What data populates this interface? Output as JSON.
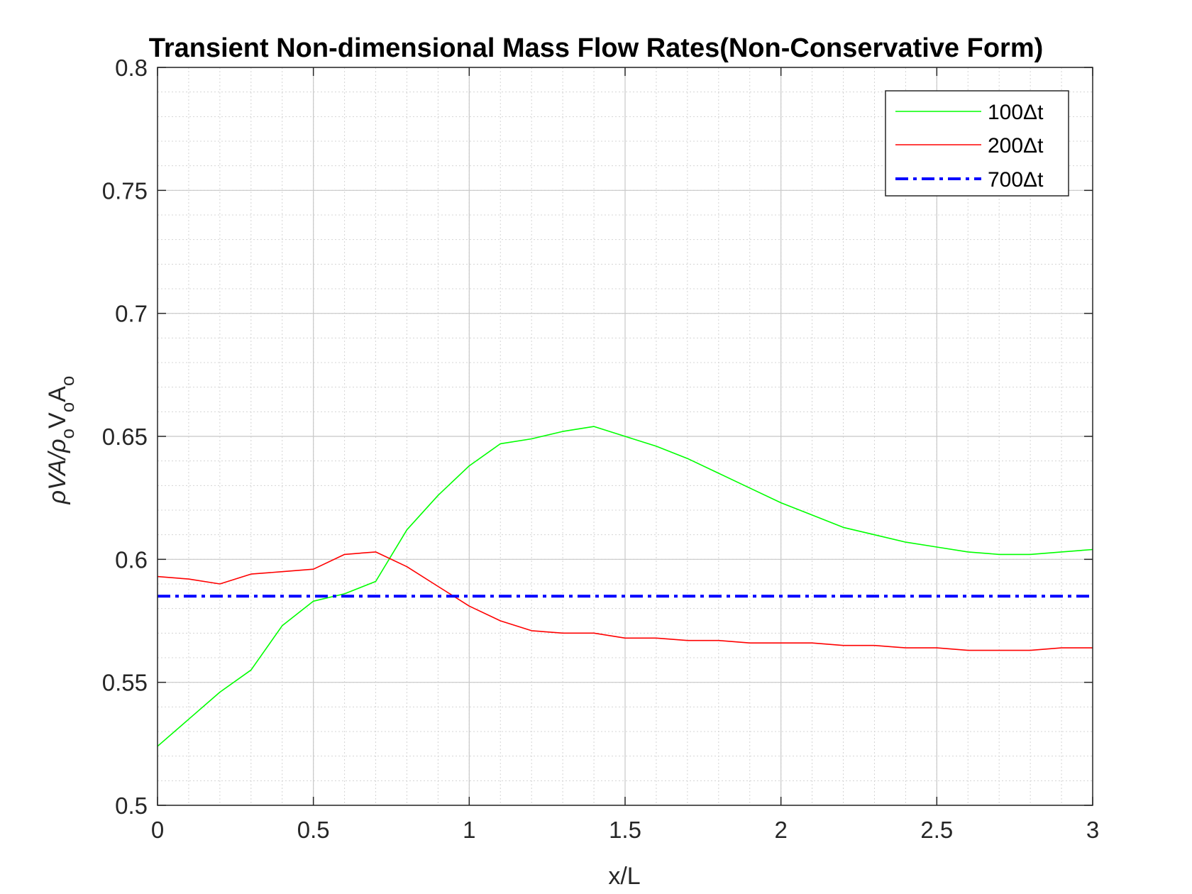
{
  "chart_data": {
    "type": "line",
    "title": "Transient Non-dimensional Mass Flow Rates(Non-Conservative Form)",
    "xlabel": "x/L",
    "ylabel": "ρVA/ρₒVₒAₒ",
    "ylabel_parts": {
      "main1": "ρVA/ρ",
      "sub1": "o",
      "main2": "V",
      "sub2": "o",
      "main3": "A",
      "sub3": "o"
    },
    "xlim": [
      0,
      3
    ],
    "ylim": [
      0.5,
      0.8
    ],
    "xticks": [
      0,
      0.5,
      1,
      1.5,
      2,
      2.5,
      3
    ],
    "xtick_labels": [
      "0",
      "0.5",
      "1",
      "1.5",
      "2",
      "2.5",
      "3"
    ],
    "yticks": [
      0.5,
      0.55,
      0.6,
      0.65,
      0.7,
      0.75,
      0.8
    ],
    "ytick_labels": [
      "0.5",
      "0.55",
      "0.6",
      "0.65",
      "0.7",
      "0.75",
      "0.8"
    ],
    "grid": true,
    "minor_grid": true,
    "legend_position": "top-right",
    "x": [
      0,
      0.1,
      0.2,
      0.3,
      0.4,
      0.5,
      0.6,
      0.7,
      0.8,
      0.9,
      1.0,
      1.1,
      1.2,
      1.3,
      1.4,
      1.5,
      1.6,
      1.7,
      1.8,
      1.9,
      2.0,
      2.1,
      2.2,
      2.3,
      2.4,
      2.5,
      2.6,
      2.7,
      2.8,
      2.9,
      3.0
    ],
    "series": [
      {
        "name": "100Δt",
        "color": "#00ff00",
        "style": "solid",
        "values": [
          0.524,
          0.535,
          0.546,
          0.555,
          0.573,
          0.583,
          0.586,
          0.591,
          0.612,
          0.626,
          0.638,
          0.647,
          0.649,
          0.652,
          0.654,
          0.65,
          0.646,
          0.641,
          0.635,
          0.629,
          0.623,
          0.618,
          0.613,
          0.61,
          0.607,
          0.605,
          0.603,
          0.602,
          0.602,
          0.603,
          0.604
        ]
      },
      {
        "name": "200Δt",
        "color": "#ff0000",
        "style": "solid",
        "values": [
          0.593,
          0.592,
          0.59,
          0.594,
          0.595,
          0.596,
          0.602,
          0.603,
          0.597,
          0.589,
          0.581,
          0.575,
          0.571,
          0.57,
          0.57,
          0.568,
          0.568,
          0.567,
          0.567,
          0.566,
          0.566,
          0.566,
          0.565,
          0.565,
          0.564,
          0.564,
          0.563,
          0.563,
          0.563,
          0.564,
          0.564
        ]
      },
      {
        "name": "700Δt",
        "color": "#0000ff",
        "style": "dashdot",
        "values": [
          0.585,
          0.585,
          0.585,
          0.585,
          0.585,
          0.585,
          0.585,
          0.585,
          0.585,
          0.585,
          0.585,
          0.585,
          0.585,
          0.585,
          0.585,
          0.585,
          0.585,
          0.585,
          0.585,
          0.585,
          0.585,
          0.585,
          0.585,
          0.585,
          0.585,
          0.585,
          0.585,
          0.585,
          0.585,
          0.585,
          0.585
        ]
      }
    ]
  }
}
